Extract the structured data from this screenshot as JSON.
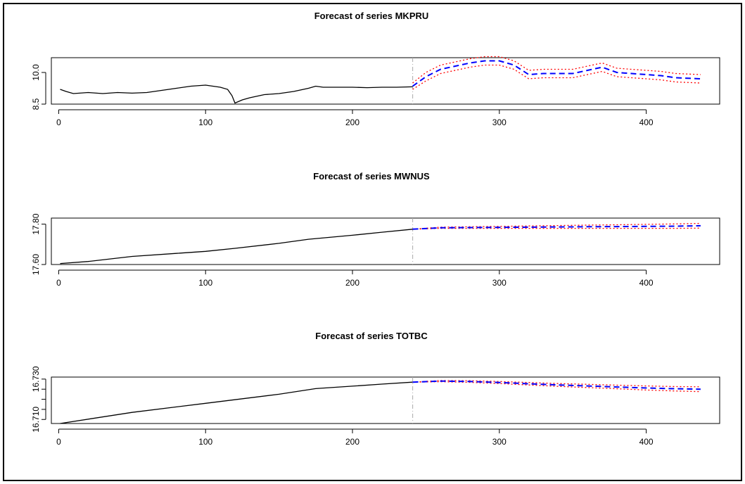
{
  "chart_data": [
    {
      "type": "line",
      "title": "Forecast of series MKPRU",
      "xlim": [
        -5,
        450
      ],
      "ylim": [
        8.5,
        10.7
      ],
      "x_ticks": [
        0,
        100,
        200,
        300,
        400
      ],
      "y_ticks": [
        8.5,
        10.0
      ],
      "y_tick_labels": [
        "8.5",
        "10.0"
      ],
      "forecast_start": 241,
      "colors": {
        "actual": "#000000",
        "forecast": "#0000ff",
        "interval": "#ff0000",
        "divider": "#aaaaaa"
      },
      "actual": {
        "x": [
          1,
          5,
          10,
          20,
          30,
          40,
          50,
          60,
          70,
          80,
          90,
          100,
          110,
          115,
          118,
          120,
          125,
          130,
          140,
          150,
          160,
          170,
          175,
          180,
          190,
          200,
          210,
          220,
          230,
          241
        ],
        "y": [
          9.2,
          9.1,
          9.0,
          9.05,
          9.0,
          9.05,
          9.02,
          9.05,
          9.15,
          9.25,
          9.35,
          9.4,
          9.3,
          9.2,
          8.9,
          8.55,
          8.7,
          8.8,
          8.95,
          9.0,
          9.1,
          9.25,
          9.35,
          9.3,
          9.3,
          9.3,
          9.28,
          9.3,
          9.3,
          9.32
        ]
      },
      "forecast": {
        "x": [
          241,
          250,
          260,
          270,
          280,
          290,
          300,
          310,
          320,
          330,
          340,
          350,
          360,
          370,
          380,
          390,
          400,
          410,
          420,
          437
        ],
        "y": [
          9.35,
          9.8,
          10.15,
          10.3,
          10.45,
          10.55,
          10.55,
          10.35,
          9.9,
          9.95,
          9.95,
          9.95,
          10.1,
          10.25,
          10.0,
          9.95,
          9.9,
          9.85,
          9.75,
          9.7
        ],
        "lower": [
          9.2,
          9.6,
          9.95,
          10.1,
          10.25,
          10.35,
          10.35,
          10.15,
          9.7,
          9.75,
          9.75,
          9.75,
          9.9,
          10.05,
          9.8,
          9.75,
          9.7,
          9.65,
          9.55,
          9.5
        ],
        "upper": [
          9.5,
          10.0,
          10.35,
          10.5,
          10.65,
          10.75,
          10.75,
          10.55,
          10.1,
          10.15,
          10.15,
          10.15,
          10.3,
          10.45,
          10.2,
          10.15,
          10.1,
          10.05,
          9.95,
          9.9
        ]
      }
    },
    {
      "type": "line",
      "title": "Forecast of series MWNUS",
      "xlim": [
        -5,
        450
      ],
      "ylim": [
        17.6,
        17.83
      ],
      "x_ticks": [
        0,
        100,
        200,
        300,
        400
      ],
      "y_ticks": [
        17.6,
        17.8
      ],
      "y_tick_labels": [
        "17.60",
        "17.80"
      ],
      "forecast_start": 241,
      "colors": {
        "actual": "#000000",
        "forecast": "#0000ff",
        "interval": "#ff0000",
        "divider": "#aaaaaa"
      },
      "actual": {
        "x": [
          1,
          20,
          50,
          80,
          100,
          120,
          150,
          170,
          200,
          220,
          241
        ],
        "y": [
          17.605,
          17.615,
          17.64,
          17.655,
          17.665,
          17.68,
          17.705,
          17.725,
          17.745,
          17.76,
          17.775
        ]
      },
      "forecast": {
        "x": [
          241,
          260,
          280,
          300,
          320,
          340,
          360,
          380,
          400,
          420,
          437
        ],
        "y": [
          17.775,
          17.782,
          17.783,
          17.784,
          17.785,
          17.786,
          17.787,
          17.788,
          17.789,
          17.79,
          17.792
        ],
        "lower": [
          17.775,
          17.779,
          17.779,
          17.779,
          17.779,
          17.779,
          17.779,
          17.779,
          17.779,
          17.779,
          17.78
        ],
        "upper": [
          17.775,
          17.785,
          17.787,
          17.789,
          17.791,
          17.793,
          17.795,
          17.797,
          17.799,
          17.801,
          17.804
        ]
      }
    },
    {
      "type": "line",
      "title": "Forecast of series TOTBC",
      "xlim": [
        -5,
        450
      ],
      "ylim": [
        16.708,
        16.731
      ],
      "x_ticks": [
        0,
        100,
        200,
        300,
        400
      ],
      "y_ticks": [
        16.71,
        16.715,
        16.72,
        16.725,
        16.73
      ],
      "y_tick_labels": [
        "16.710",
        "",
        "",
        "",
        "16.730"
      ],
      "forecast_start": 241,
      "colors": {
        "actual": "#000000",
        "forecast": "#0000ff",
        "interval": "#ff0000",
        "divider": "#aaaaaa"
      },
      "actual": {
        "x": [
          1,
          50,
          100,
          150,
          175,
          200,
          220,
          241
        ],
        "y": [
          16.708,
          16.7135,
          16.718,
          16.7225,
          16.7253,
          16.7265,
          16.7275,
          16.7285
        ]
      },
      "forecast": {
        "x": [
          241,
          260,
          280,
          300,
          320,
          340,
          360,
          380,
          400,
          420,
          437
        ],
        "y": [
          16.7285,
          16.729,
          16.7288,
          16.7283,
          16.7277,
          16.7271,
          16.7266,
          16.7261,
          16.7256,
          16.7252,
          16.725
        ],
        "lower": [
          16.7285,
          16.7287,
          16.7284,
          16.7278,
          16.7271,
          16.7264,
          16.7258,
          16.7252,
          16.7246,
          16.7241,
          16.7238
        ],
        "upper": [
          16.7285,
          16.7293,
          16.7292,
          16.7288,
          16.7283,
          16.7278,
          16.7274,
          16.727,
          16.7266,
          16.7263,
          16.7262
        ]
      }
    }
  ]
}
